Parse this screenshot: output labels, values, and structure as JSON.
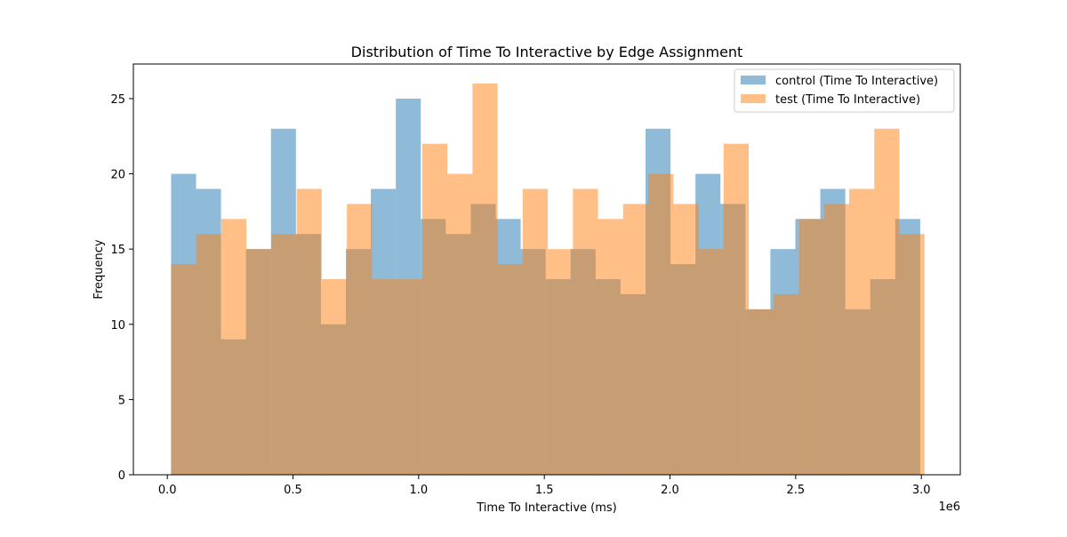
{
  "chart_data": {
    "type": "bar",
    "title": "Distribution of Time To Interactive by Edge Assignment",
    "xlabel": "Time To Interactive (ms)",
    "ylabel": "Frequency",
    "x_offset_label": "1e6",
    "xlim": [
      -0.135,
      3.155
    ],
    "ylim": [
      0,
      27.3
    ],
    "x_ticks": [
      0.0,
      0.5,
      1.0,
      1.5,
      2.0,
      2.5,
      3.0
    ],
    "x_tick_labels": [
      "0.0",
      "0.5",
      "1.0",
      "1.5",
      "2.0",
      "2.5",
      "3.0"
    ],
    "y_ticks": [
      0,
      5,
      10,
      15,
      20,
      25
    ],
    "y_tick_labels": [
      "0",
      "5",
      "10",
      "15",
      "20",
      "25"
    ],
    "grid": false,
    "legend_position": "top-right",
    "series": [
      {
        "name": "control (Time To Interactive)",
        "color": "#1f77b4",
        "opacity": 0.5,
        "bin_start": 0.015,
        "bin_width": 0.09935,
        "values": [
          20,
          19,
          9,
          15,
          23,
          16,
          10,
          15,
          19,
          25,
          17,
          16,
          18,
          17,
          15,
          13,
          15,
          13,
          12,
          23,
          14,
          20,
          18,
          11,
          15,
          17,
          19,
          11,
          13,
          17
        ]
      },
      {
        "name": "test (Time To Interactive)",
        "color": "#ff7f0e",
        "opacity": 0.5,
        "bin_start": 0.015,
        "bin_width": 0.09992,
        "values": [
          14,
          16,
          17,
          15,
          16,
          19,
          13,
          18,
          13,
          13,
          22,
          20,
          26,
          14,
          19,
          15,
          19,
          17,
          18,
          20,
          18,
          15,
          22,
          11,
          12,
          17,
          18,
          19,
          23,
          16
        ]
      }
    ]
  }
}
